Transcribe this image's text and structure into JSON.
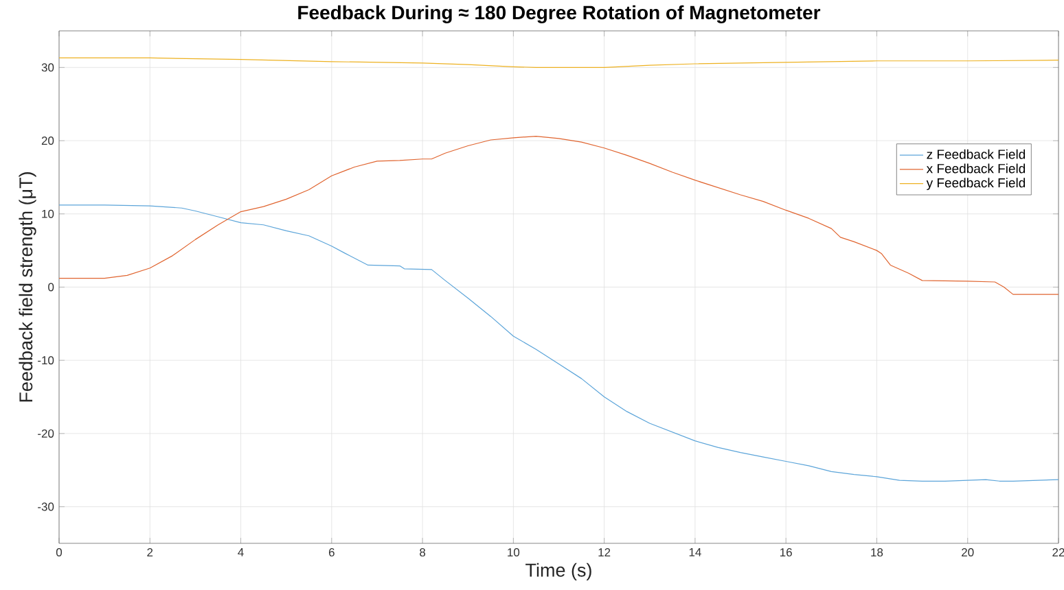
{
  "chart_data": {
    "type": "line",
    "title": "Feedback During ≈ 180 Degree Rotation of Magnetometer",
    "xlabel": "Time (s)",
    "ylabel": "Feedback field strength (μT)",
    "xlim": [
      0,
      22
    ],
    "xticks": [
      0,
      2,
      4,
      6,
      8,
      10,
      12,
      14,
      16,
      18,
      20,
      22
    ],
    "ylim": [
      -35,
      35
    ],
    "yticks": [
      -30,
      -20,
      -10,
      0,
      10,
      20,
      30
    ],
    "grid": true,
    "legend": "right",
    "line_style": "solid",
    "marker": "none",
    "series": [
      {
        "name": "z Feedback Field",
        "color": "#5ba4d9",
        "x": [
          0,
          1,
          2,
          2.7,
          3,
          3.5,
          4,
          4.5,
          5,
          5.5,
          6,
          6.3,
          6.8,
          7.5,
          7.6,
          8.2,
          8.5,
          9,
          9.5,
          10,
          10.5,
          11,
          11.5,
          12,
          12.5,
          13,
          13.5,
          14,
          14.5,
          15,
          15.5,
          16,
          16.5,
          17,
          17.5,
          18,
          18.5,
          19,
          19.5,
          20,
          20.4,
          20.7,
          21,
          22
        ],
        "values": [
          11.2,
          11.2,
          11.1,
          10.8,
          10.4,
          9.6,
          8.8,
          8.5,
          7.7,
          7.0,
          5.6,
          4.6,
          3.0,
          2.9,
          2.5,
          2.4,
          0.9,
          -1.5,
          -4.0,
          -6.7,
          -8.5,
          -10.5,
          -12.5,
          -15.0,
          -17.0,
          -18.6,
          -19.8,
          -21.0,
          -21.9,
          -22.6,
          -23.2,
          -23.8,
          -24.4,
          -25.2,
          -25.6,
          -25.9,
          -26.4,
          -26.5,
          -26.5,
          -26.4,
          -26.3,
          -26.5,
          -26.5,
          -26.3
        ]
      },
      {
        "name": "x Feedback Field",
        "color": "#e0642f",
        "x": [
          0,
          1,
          1.5,
          2,
          2.5,
          3,
          3.5,
          4,
          4.5,
          5,
          5.5,
          6,
          6.5,
          7,
          7.5,
          8,
          8.2,
          8.5,
          9,
          9.5,
          10,
          10.5,
          11,
          11.5,
          12,
          12.5,
          13,
          13.5,
          14,
          14.5,
          15,
          15.5,
          16,
          16.5,
          17,
          17.2,
          17.5,
          18,
          18.1,
          18.3,
          18.7,
          19,
          20,
          20.6,
          20.8,
          21,
          22
        ],
        "values": [
          1.2,
          1.2,
          1.6,
          2.6,
          4.3,
          6.5,
          8.5,
          10.3,
          11.0,
          12.0,
          13.3,
          15.2,
          16.4,
          17.2,
          17.3,
          17.5,
          17.5,
          18.3,
          19.3,
          20.1,
          20.4,
          20.6,
          20.3,
          19.8,
          19.0,
          18.0,
          16.9,
          15.7,
          14.6,
          13.6,
          12.6,
          11.7,
          10.5,
          9.4,
          8.0,
          6.8,
          6.2,
          5.0,
          4.6,
          3.0,
          1.9,
          0.9,
          0.8,
          0.7,
          0,
          -1.0,
          -1.0
        ]
      },
      {
        "name": "y Feedback Field",
        "color": "#edb120",
        "x": [
          0,
          2,
          4,
          6,
          8,
          9,
          10,
          10.5,
          12,
          13,
          14,
          16,
          18,
          20,
          22
        ],
        "values": [
          31.3,
          31.3,
          31.1,
          30.8,
          30.6,
          30.4,
          30.1,
          30.0,
          30.0,
          30.3,
          30.5,
          30.7,
          30.9,
          30.9,
          31.0
        ]
      }
    ]
  }
}
